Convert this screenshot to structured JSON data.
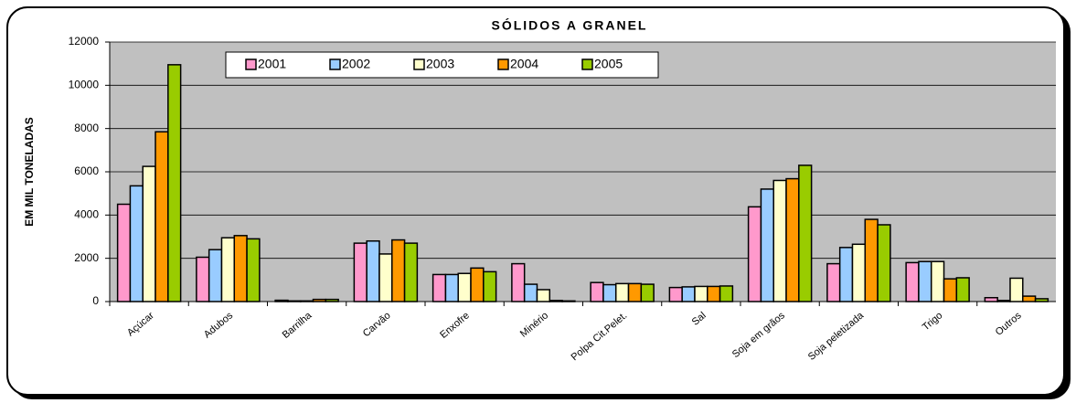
{
  "chart_data": {
    "type": "bar",
    "title": "SÓLIDOS A GRANEL",
    "y_label": "EM MIL TONELADAS",
    "categories": [
      "Açúcar",
      "Adubos",
      "Barrilha",
      "Carvão",
      "Enxofre",
      "Minério",
      "Polpa Cit.Pelet.",
      "Sal",
      "Soja em grãos",
      "Soja peletizada",
      "Trigo",
      "Outros"
    ],
    "series": [
      {
        "name": "2001",
        "color": "#ff99cc",
        "values": [
          4500,
          2050,
          60,
          2700,
          1250,
          1750,
          880,
          650,
          4380,
          1750,
          1800,
          180
        ]
      },
      {
        "name": "2002",
        "color": "#99ccff",
        "values": [
          5350,
          2400,
          30,
          2800,
          1250,
          800,
          780,
          680,
          5200,
          2500,
          1850,
          50
        ]
      },
      {
        "name": "2003",
        "color": "#ffffcc",
        "values": [
          6250,
          2950,
          30,
          2200,
          1300,
          550,
          830,
          700,
          5600,
          2650,
          1850,
          1080
        ]
      },
      {
        "name": "2004",
        "color": "#ff9900",
        "values": [
          7850,
          3050,
          100,
          2850,
          1550,
          50,
          830,
          700,
          5680,
          3800,
          1050,
          250
        ]
      },
      {
        "name": "2005",
        "color": "#99cc00",
        "values": [
          10950,
          2900,
          100,
          2700,
          1380,
          30,
          800,
          720,
          6300,
          3550,
          1100,
          130
        ]
      }
    ],
    "ylim": [
      0,
      12000
    ],
    "yticks": [
      0,
      2000,
      4000,
      6000,
      8000,
      10000,
      12000
    ],
    "grid": true,
    "plot_color": "#c0c0c0"
  }
}
